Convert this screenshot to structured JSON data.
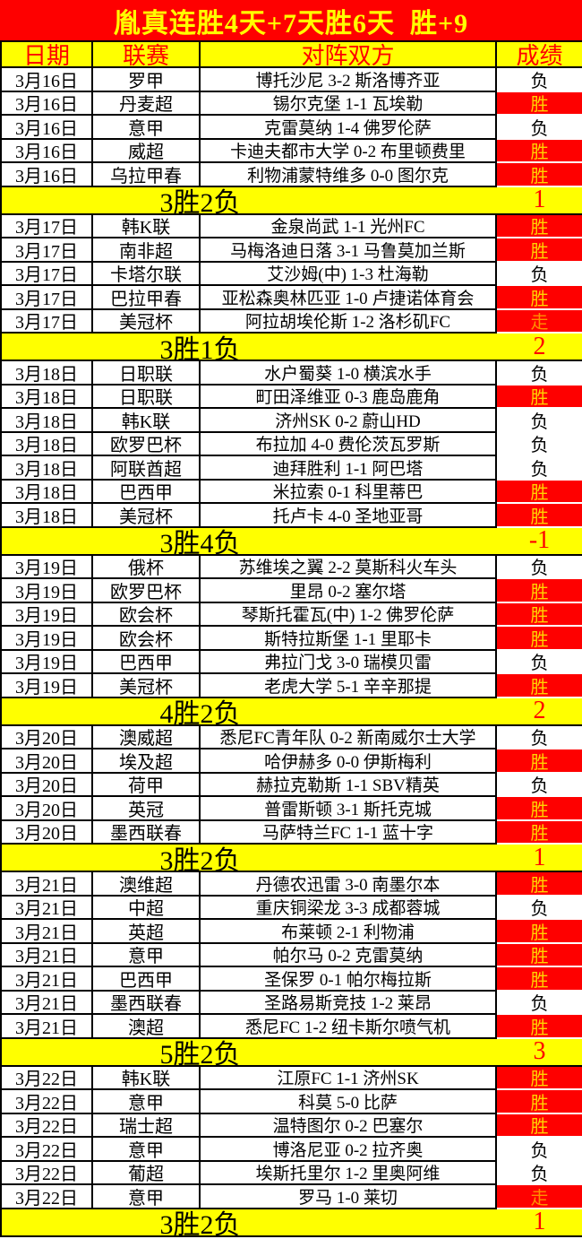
{
  "title": "胤真连胜4天+7天胜6天  胜+9",
  "header": {
    "date": "日期",
    "league": "联赛",
    "matchup": "对阵双方",
    "result": "成绩"
  },
  "colors": {
    "banner_red": "#fe0000",
    "banner_yellow": "#ffff00",
    "win_cell_bg": "#fe0000",
    "win_text": "#ffd200",
    "push_text": "#ff9000",
    "loss_text": "#000000",
    "summary_bg": "#ffff00",
    "summary_score_text": "#fe0000"
  },
  "result_legend": {
    "win": "胜",
    "loss": "负",
    "push": "走"
  },
  "groups": [
    {
      "rows": [
        {
          "date": "3月16日",
          "league": "罗甲",
          "match": "博托沙尼 3-2 斯洛博齐亚",
          "result": "负"
        },
        {
          "date": "3月16日",
          "league": "丹麦超",
          "match": "锡尔克堡 1-1 瓦埃勒",
          "result": "胜"
        },
        {
          "date": "3月16日",
          "league": "意甲",
          "match": "克雷莫纳 1-4 佛罗伦萨",
          "result": "负"
        },
        {
          "date": "3月16日",
          "league": "威超",
          "match": "卡迪夫都市大学 0-2 布里顿费里",
          "result": "胜"
        },
        {
          "date": "3月16日",
          "league": "乌拉甲春",
          "match": "利物浦蒙特维多 0-0 图尔克",
          "result": "胜"
        }
      ],
      "summary": {
        "label": "3胜2负",
        "score": "1"
      }
    },
    {
      "rows": [
        {
          "date": "3月17日",
          "league": "韩K联",
          "match": "金泉尚武 1-1 光州FC",
          "result": "胜"
        },
        {
          "date": "3月17日",
          "league": "南非超",
          "match": "马梅洛迪日落 3-1 马鲁莫加兰斯",
          "result": "胜"
        },
        {
          "date": "3月17日",
          "league": "卡塔尔联",
          "match": "艾沙姆(中) 1-3 杜海勒",
          "result": "负"
        },
        {
          "date": "3月17日",
          "league": "巴拉甲春",
          "match": "亚松森奥林匹亚 1-0 卢捷诺体育会",
          "result": "胜"
        },
        {
          "date": "3月17日",
          "league": "美冠杯",
          "match": "阿拉胡埃伦斯 1-2 洛杉矶FC",
          "result": "走"
        }
      ],
      "summary": {
        "label": "3胜1负",
        "score": "2"
      }
    },
    {
      "rows": [
        {
          "date": "3月18日",
          "league": "日职联",
          "match": "水户蜀葵 1-0 横滨水手",
          "result": "负"
        },
        {
          "date": "3月18日",
          "league": "日职联",
          "match": "町田泽维亚 0-3 鹿岛鹿角",
          "result": "胜"
        },
        {
          "date": "3月18日",
          "league": "韩K联",
          "match": "济州SK 0-2 蔚山HD",
          "result": "负"
        },
        {
          "date": "3月18日",
          "league": "欧罗巴杯",
          "match": "布拉加 4-0 费伦茨瓦罗斯",
          "result": "负"
        },
        {
          "date": "3月18日",
          "league": "阿联酋超",
          "match": "迪拜胜利 1-1 阿巴塔",
          "result": "负"
        },
        {
          "date": "3月18日",
          "league": "巴西甲",
          "match": "米拉索 0-1 科里蒂巴",
          "result": "胜"
        },
        {
          "date": "3月18日",
          "league": "美冠杯",
          "match": "托卢卡 4-0 圣地亚哥",
          "result": "胜"
        }
      ],
      "summary": {
        "label": "3胜4负",
        "score": "-1"
      }
    },
    {
      "rows": [
        {
          "date": "3月19日",
          "league": "俄杯",
          "match": "苏维埃之翼 2-2 莫斯科火车头",
          "result": "负"
        },
        {
          "date": "3月19日",
          "league": "欧罗巴杯",
          "match": "里昂 0-2 塞尔塔",
          "result": "胜"
        },
        {
          "date": "3月19日",
          "league": "欧会杯",
          "match": "琴斯托霍瓦(中) 1-2 佛罗伦萨",
          "result": "胜"
        },
        {
          "date": "3月19日",
          "league": "欧会杯",
          "match": "斯特拉斯堡 1-1 里耶卡",
          "result": "胜"
        },
        {
          "date": "3月19日",
          "league": "巴西甲",
          "match": "弗拉门戈 3-0 瑞模贝雷",
          "result": "负"
        },
        {
          "date": "3月19日",
          "league": "美冠杯",
          "match": "老虎大学 5-1 辛辛那提",
          "result": "胜"
        }
      ],
      "summary": {
        "label": "4胜2负",
        "score": "2"
      }
    },
    {
      "rows": [
        {
          "date": "3月20日",
          "league": "澳威超",
          "match": "悉尼FC青年队 0-2 新南威尔士大学",
          "result": "负"
        },
        {
          "date": "3月20日",
          "league": "埃及超",
          "match": "哈伊赫多 0-0 伊斯梅利",
          "result": "胜"
        },
        {
          "date": "3月20日",
          "league": "荷甲",
          "match": "赫拉克勒斯 1-1 SBV精英",
          "result": "负"
        },
        {
          "date": "3月20日",
          "league": "英冠",
          "match": "普雷斯顿 3-1 斯托克城",
          "result": "胜"
        },
        {
          "date": "3月20日",
          "league": "墨西联春",
          "match": "马萨特兰FC 1-1 蓝十字",
          "result": "胜"
        }
      ],
      "summary": {
        "label": "3胜2负",
        "score": "1"
      }
    },
    {
      "rows": [
        {
          "date": "3月21日",
          "league": "澳维超",
          "match": "丹德农迅雷 3-0 南墨尔本",
          "result": "胜"
        },
        {
          "date": "3月21日",
          "league": "中超",
          "match": "重庆铜梁龙 3-3 成都蓉城",
          "result": "负"
        },
        {
          "date": "3月21日",
          "league": "英超",
          "match": "布莱顿 2-1 利物浦",
          "result": "胜"
        },
        {
          "date": "3月21日",
          "league": "意甲",
          "match": "帕尔马 0-2 克雷莫纳",
          "result": "胜"
        },
        {
          "date": "3月21日",
          "league": "巴西甲",
          "match": "圣保罗 0-1 帕尔梅拉斯",
          "result": "胜"
        },
        {
          "date": "3月21日",
          "league": "墨西联春",
          "match": "圣路易斯竞技 1-2 莱昂",
          "result": "负"
        },
        {
          "date": "3月21日",
          "league": "澳超",
          "match": "悉尼FC 1-2 纽卡斯尔喷气机",
          "result": "胜"
        }
      ],
      "summary": {
        "label": "5胜2负",
        "score": "3"
      }
    },
    {
      "rows": [
        {
          "date": "3月22日",
          "league": "韩K联",
          "match": "江原FC 1-1 济州SK",
          "result": "胜"
        },
        {
          "date": "3月22日",
          "league": "意甲",
          "match": "科莫 5-0 比萨",
          "result": "胜"
        },
        {
          "date": "3月22日",
          "league": "瑞士超",
          "match": "温特图尔 0-2 巴塞尔",
          "result": "胜"
        },
        {
          "date": "3月22日",
          "league": "意甲",
          "match": "博洛尼亚 0-2 拉齐奥",
          "result": "负"
        },
        {
          "date": "3月22日",
          "league": "葡超",
          "match": "埃斯托里尔 1-2 里奥阿维",
          "result": "负"
        },
        {
          "date": "3月22日",
          "league": "意甲",
          "match": "罗马 1-0 莱切",
          "result": "走"
        }
      ],
      "summary": {
        "label": "3胜2负",
        "score": "1"
      }
    }
  ]
}
